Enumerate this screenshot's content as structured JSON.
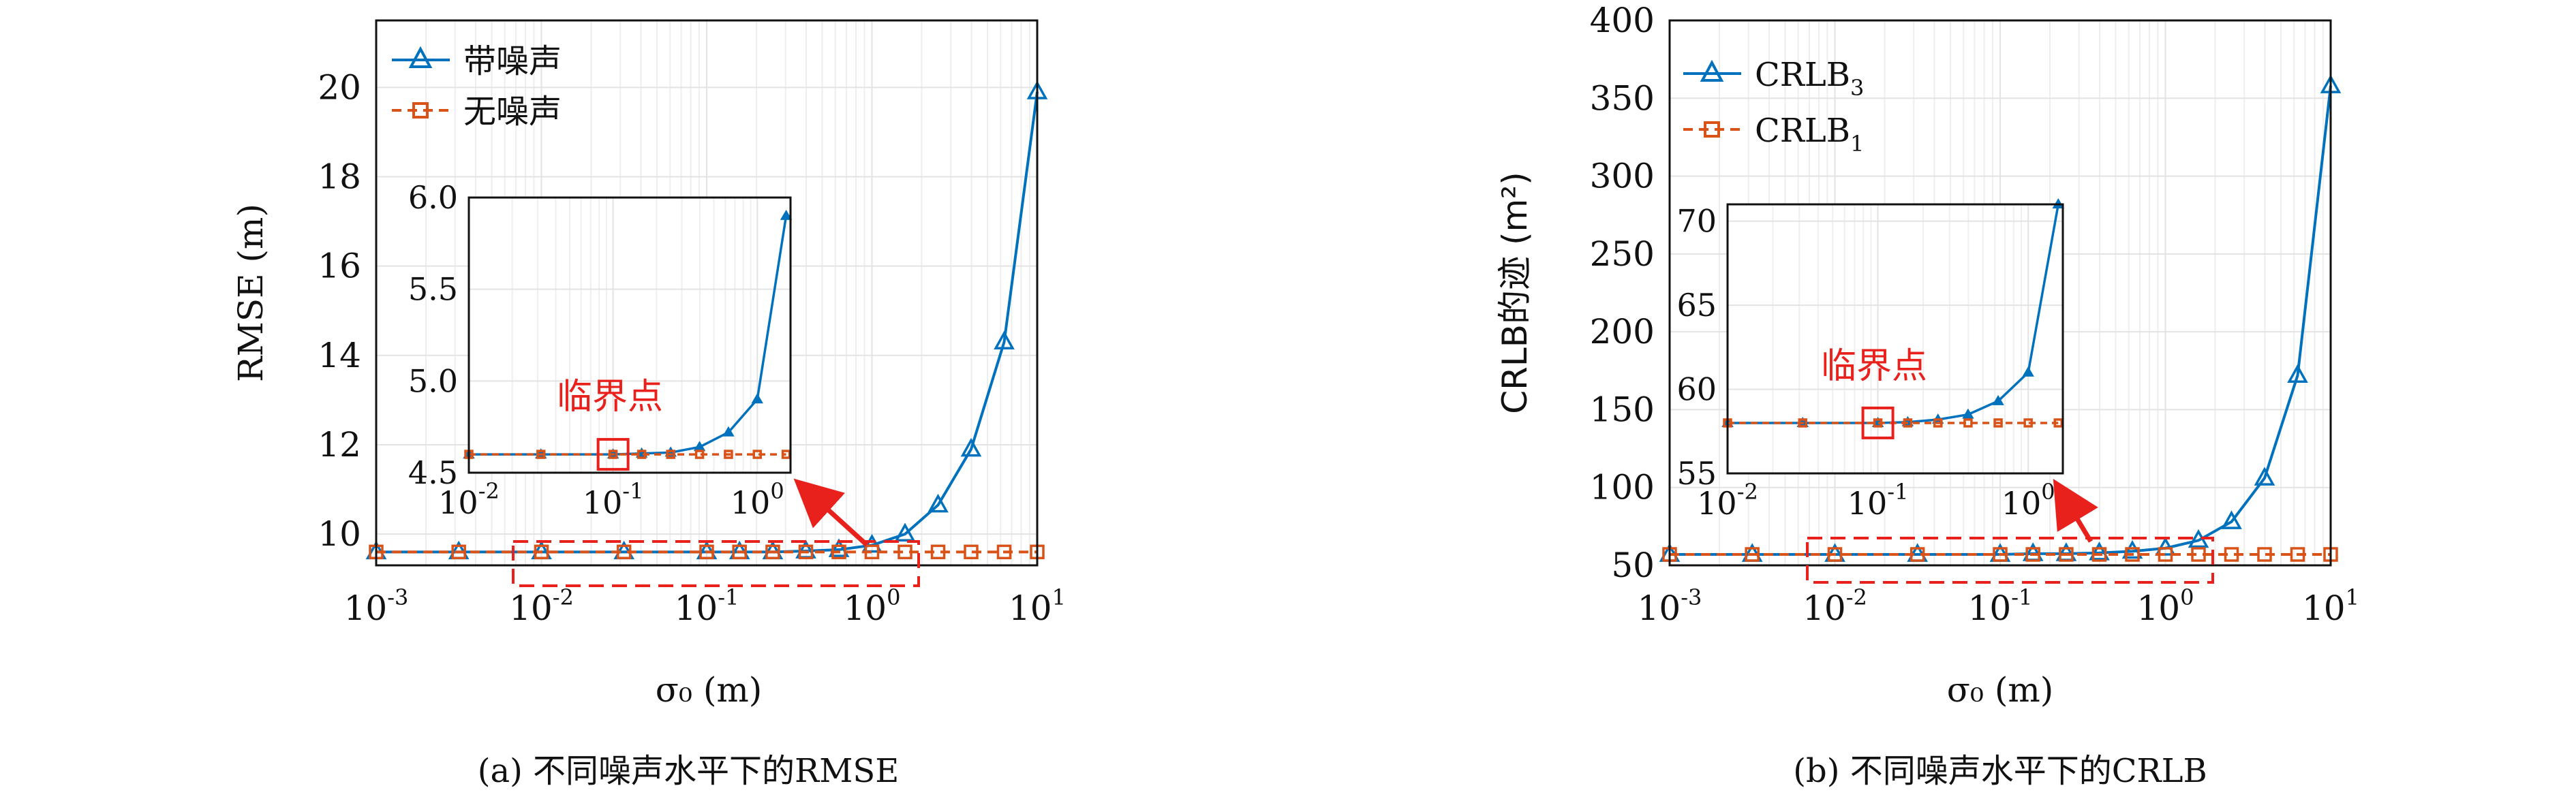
{
  "colors": {
    "series_blue": "#0072BD",
    "series_orange": "#D95319",
    "annotation_red": "#e8211d",
    "grid": "#e3e3e3"
  },
  "chart_data": [
    {
      "id": "rmse",
      "type": "line",
      "caption": "(a) 不同噪声水平下的RMSE",
      "xlabel": "σ₀ (m)",
      "ylabel": "RMSE (m)",
      "xscale": "log",
      "xlim": [
        0.001,
        10
      ],
      "ylim": [
        9.3,
        21.5
      ],
      "yticks": [
        10,
        12,
        14,
        16,
        18,
        20
      ],
      "grid": true,
      "legend": "top-left",
      "x": [
        0.001,
        0.00316,
        0.01,
        0.0316,
        0.1,
        0.158,
        0.251,
        0.398,
        0.631,
        1,
        1.585,
        2.512,
        3.981,
        6.31,
        10
      ],
      "series": [
        {
          "name": "带噪声",
          "marker": "triangle",
          "color": "#0072BD",
          "dash": false,
          "values": [
            9.6,
            9.6,
            9.6,
            9.6,
            9.6,
            9.6,
            9.6,
            9.62,
            9.65,
            9.75,
            10.0,
            10.65,
            11.9,
            14.3,
            19.9
          ]
        },
        {
          "name": "无噪声",
          "marker": "square",
          "color": "#D95319",
          "dash": true,
          "values": [
            9.6,
            9.6,
            9.6,
            9.6,
            9.6,
            9.6,
            9.6,
            9.6,
            9.6,
            9.6,
            9.6,
            9.6,
            9.6,
            9.6,
            9.6
          ]
        }
      ],
      "inset": {
        "xlim": [
          0.01,
          1.7
        ],
        "ylim": [
          4.5,
          6.0
        ],
        "yticks": [
          "4.5",
          "5.0",
          "5.5",
          "6.0"
        ],
        "xticks": [
          0.01,
          0.1,
          1
        ],
        "x": [
          0.01,
          0.0316,
          0.1,
          0.158,
          0.251,
          0.398,
          0.631,
          1,
          1.585
        ],
        "series_values": [
          [
            4.6,
            4.6,
            4.6,
            4.605,
            4.61,
            4.64,
            4.72,
            4.9,
            5.9
          ],
          [
            4.6,
            4.6,
            4.6,
            4.6,
            4.6,
            4.6,
            4.6,
            4.6,
            4.6
          ]
        ],
        "critical_point_x": 0.1,
        "annotation": "临界点"
      }
    },
    {
      "id": "crlb",
      "type": "line",
      "caption": "(b) 不同噪声水平下的CRLB",
      "xlabel": "σ₀ (m)",
      "ylabel": "CRLB的迹 (m²)",
      "xscale": "log",
      "xlim": [
        0.001,
        10
      ],
      "ylim": [
        50,
        400
      ],
      "yticks": [
        50,
        100,
        150,
        200,
        250,
        300,
        350,
        400
      ],
      "grid": true,
      "legend": "top-left",
      "x": [
        0.001,
        0.00316,
        0.01,
        0.0316,
        0.1,
        0.158,
        0.251,
        0.398,
        0.631,
        1,
        1.585,
        2.512,
        3.981,
        6.31,
        10
      ],
      "series": [
        {
          "name": "CRLB",
          "name_sub": "3",
          "marker": "triangle",
          "color": "#0072BD",
          "dash": false,
          "values": [
            57,
            57,
            57,
            57,
            57,
            57.5,
            57.5,
            58,
            59,
            61,
            66,
            78,
            106,
            172,
            358
          ]
        },
        {
          "name": "CRLB",
          "name_sub": "1",
          "marker": "square",
          "color": "#D95319",
          "dash": true,
          "values": [
            57,
            57,
            57,
            57,
            57,
            57,
            57,
            57,
            57,
            57,
            57,
            57,
            57,
            57,
            57
          ]
        }
      ],
      "inset": {
        "xlim": [
          0.01,
          1.7
        ],
        "ylim": [
          55,
          71
        ],
        "yticks": [
          "55",
          "60",
          "65",
          "70"
        ],
        "xticks": [
          0.01,
          0.1,
          1
        ],
        "x": [
          0.01,
          0.0316,
          0.1,
          0.158,
          0.251,
          0.398,
          0.631,
          1,
          1.585
        ],
        "series_values": [
          [
            58,
            58,
            58,
            58.05,
            58.2,
            58.5,
            59.3,
            61,
            71
          ],
          [
            58,
            58,
            58,
            58,
            58,
            58,
            58,
            58,
            58
          ]
        ],
        "critical_point_x": 0.1,
        "annotation": "临界点"
      }
    }
  ]
}
